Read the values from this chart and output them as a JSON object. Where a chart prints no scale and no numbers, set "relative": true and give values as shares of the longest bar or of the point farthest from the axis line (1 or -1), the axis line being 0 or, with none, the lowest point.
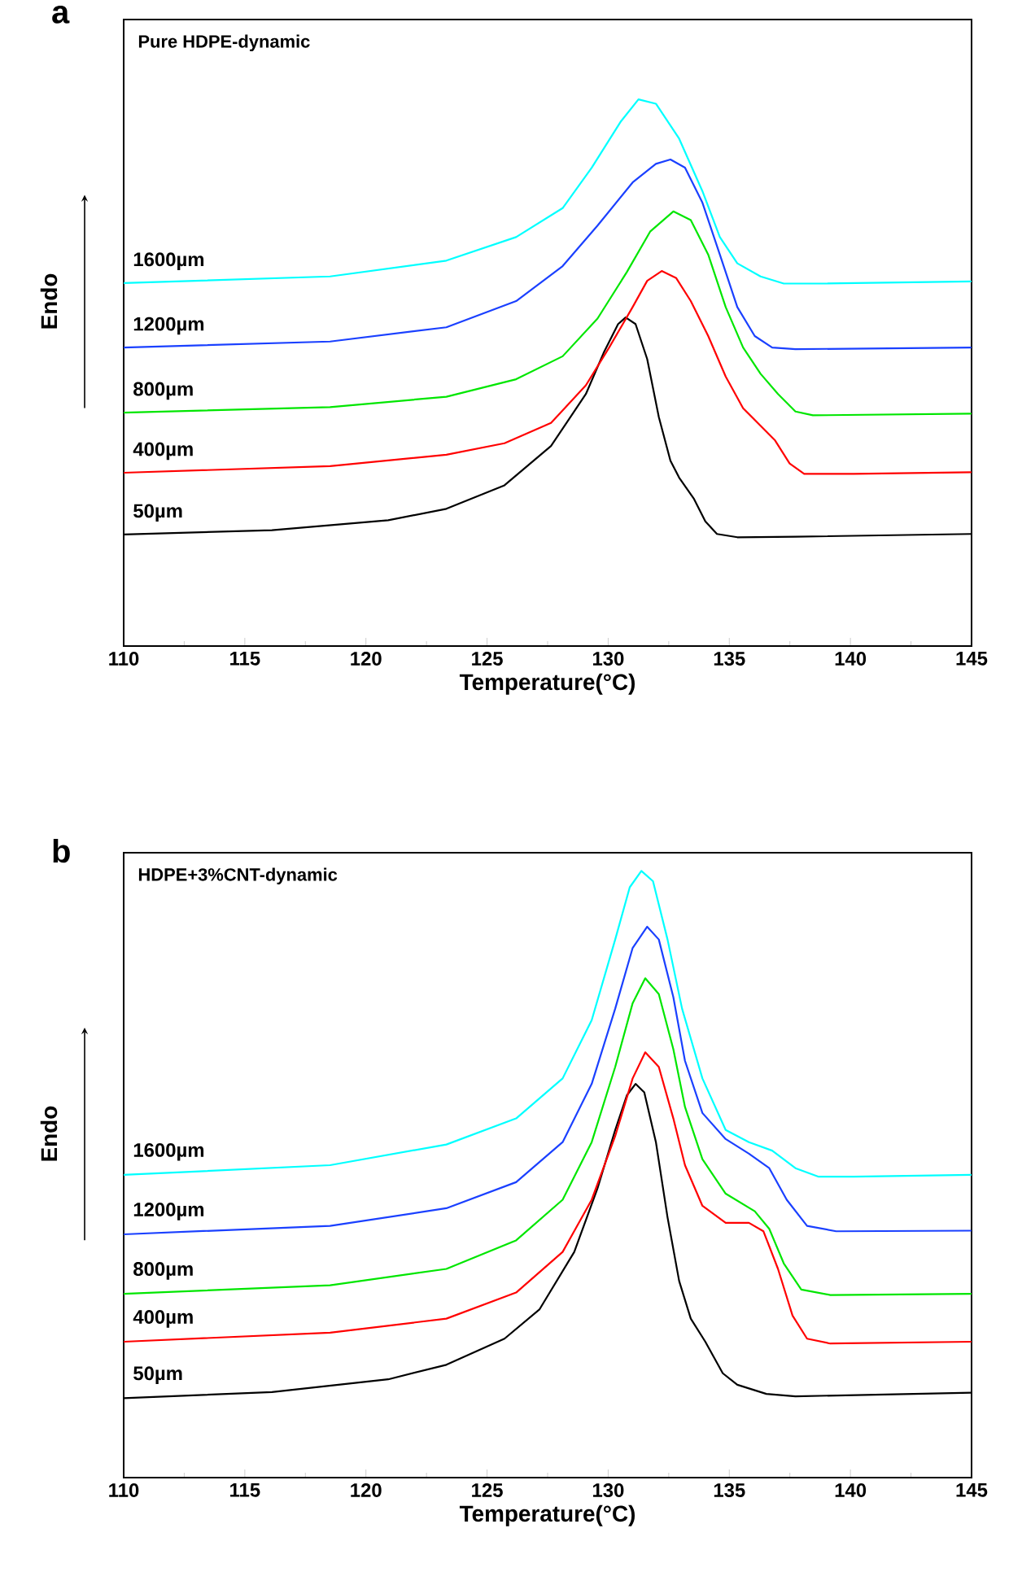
{
  "chart_data": [
    {
      "type": "line",
      "title": "a",
      "subtitle": "Pure HDPE-dynamic",
      "xlabel": "Temperature(°C)",
      "ylabel": "Endo",
      "relative": true,
      "xlim": [
        110,
        145
      ],
      "xticks": [
        110,
        115,
        120,
        125,
        130,
        135,
        140,
        145
      ],
      "series": [
        {
          "name": "50µm",
          "color": "#000000",
          "x": [
            110.0,
            116.12,
            120.92,
            123.32,
            125.72,
            127.64,
            129.08,
            129.81,
            130.41,
            130.72,
            131.13,
            131.61,
            132.09,
            132.57,
            132.93,
            133.53,
            134.01,
            134.49,
            135.33,
            137.73,
            145.0
          ],
          "values": [
            0.204,
            0.212,
            0.23,
            0.251,
            0.294,
            0.366,
            0.461,
            0.536,
            0.589,
            0.601,
            0.589,
            0.525,
            0.419,
            0.339,
            0.308,
            0.27,
            0.228,
            0.205,
            0.199,
            0.2,
            0.205
          ]
        },
        {
          "name": "400µm",
          "color": "#ff0000",
          "x": [
            110.0,
            118.52,
            123.32,
            125.72,
            127.64,
            129.08,
            130.04,
            131.01,
            131.61,
            132.21,
            132.81,
            133.41,
            134.13,
            134.85,
            135.57,
            136.29,
            136.89,
            137.49,
            138.09,
            140.13,
            145.0
          ],
          "values": [
            0.317,
            0.329,
            0.35,
            0.371,
            0.408,
            0.477,
            0.546,
            0.62,
            0.668,
            0.686,
            0.673,
            0.631,
            0.567,
            0.493,
            0.435,
            0.403,
            0.376,
            0.334,
            0.315,
            0.315,
            0.318
          ]
        },
        {
          "name": "800µm",
          "color": "#00e600",
          "x": [
            110.0,
            118.52,
            123.32,
            126.2,
            128.12,
            129.56,
            130.77,
            131.73,
            132.69,
            133.41,
            134.13,
            134.85,
            135.57,
            136.29,
            137.01,
            137.73,
            138.45,
            145.0
          ],
          "values": [
            0.427,
            0.437,
            0.456,
            0.488,
            0.53,
            0.599,
            0.684,
            0.758,
            0.795,
            0.779,
            0.716,
            0.62,
            0.546,
            0.498,
            0.461,
            0.429,
            0.422,
            0.425
          ]
        },
        {
          "name": "1200µm",
          "color": "#1a40ff",
          "x": [
            110.0,
            118.52,
            123.32,
            126.2,
            128.12,
            129.56,
            131.01,
            131.97,
            132.57,
            133.17,
            133.89,
            134.61,
            135.33,
            136.05,
            136.77,
            137.73,
            145.0
          ],
          "values": [
            0.546,
            0.557,
            0.583,
            0.631,
            0.695,
            0.769,
            0.848,
            0.882,
            0.89,
            0.875,
            0.811,
            0.716,
            0.62,
            0.567,
            0.546,
            0.543,
            0.546
          ]
        },
        {
          "name": "1600µm",
          "color": "#00ffff",
          "x": [
            110.0,
            118.52,
            123.32,
            126.2,
            128.12,
            129.32,
            130.53,
            131.25,
            131.97,
            132.93,
            133.89,
            134.61,
            135.33,
            136.29,
            137.25,
            138.93,
            145.0
          ],
          "values": [
            0.664,
            0.676,
            0.705,
            0.748,
            0.801,
            0.875,
            0.96,
            1.0,
            0.992,
            0.928,
            0.832,
            0.748,
            0.7,
            0.676,
            0.663,
            0.663,
            0.667
          ]
        }
      ]
    },
    {
      "type": "line",
      "title": "b",
      "subtitle": "HDPE+3%CNT-dynamic",
      "xlabel": "Temperature(°C)",
      "ylabel": "Endo",
      "relative": true,
      "xlim": [
        110,
        145
      ],
      "xticks": [
        110,
        115,
        120,
        125,
        130,
        135,
        140,
        145
      ],
      "series": [
        {
          "name": "50µm",
          "color": "#000000",
          "x": [
            110.0,
            116.12,
            120.92,
            123.32,
            125.72,
            127.16,
            128.6,
            129.56,
            130.29,
            130.77,
            131.13,
            131.49,
            131.97,
            132.45,
            132.93,
            133.41,
            134.01,
            134.73,
            135.33,
            136.53,
            137.73,
            145.0
          ],
          "values": [
            0.131,
            0.141,
            0.162,
            0.186,
            0.229,
            0.277,
            0.372,
            0.477,
            0.573,
            0.63,
            0.649,
            0.635,
            0.553,
            0.429,
            0.324,
            0.262,
            0.224,
            0.172,
            0.153,
            0.138,
            0.134,
            0.14
          ]
        },
        {
          "name": "400µm",
          "color": "#ff0000",
          "x": [
            110.0,
            118.52,
            123.32,
            126.2,
            128.12,
            129.32,
            130.29,
            131.01,
            131.53,
            132.09,
            132.69,
            133.17,
            133.89,
            134.85,
            135.81,
            136.41,
            137.01,
            137.61,
            138.21,
            139.17,
            145.0
          ],
          "values": [
            0.224,
            0.239,
            0.262,
            0.305,
            0.372,
            0.458,
            0.563,
            0.658,
            0.701,
            0.677,
            0.592,
            0.515,
            0.448,
            0.42,
            0.42,
            0.406,
            0.344,
            0.267,
            0.229,
            0.221,
            0.224
          ]
        },
        {
          "name": "800µm",
          "color": "#00e600",
          "x": [
            110.0,
            118.52,
            123.32,
            126.2,
            128.12,
            129.32,
            130.29,
            131.01,
            131.53,
            132.09,
            132.69,
            133.17,
            133.89,
            134.85,
            136.05,
            136.65,
            137.25,
            137.97,
            139.17,
            145.0
          ],
          "values": [
            0.303,
            0.317,
            0.344,
            0.391,
            0.458,
            0.553,
            0.677,
            0.782,
            0.823,
            0.797,
            0.706,
            0.611,
            0.525,
            0.468,
            0.439,
            0.41,
            0.353,
            0.31,
            0.301,
            0.303
          ]
        },
        {
          "name": "1200µm",
          "color": "#1a40ff",
          "x": [
            110.0,
            118.52,
            123.32,
            126.2,
            128.12,
            129.32,
            130.29,
            131.01,
            131.61,
            132.09,
            132.69,
            133.17,
            133.89,
            134.85,
            135.81,
            136.65,
            137.37,
            138.21,
            139.41,
            145.0
          ],
          "values": [
            0.401,
            0.415,
            0.444,
            0.487,
            0.553,
            0.649,
            0.773,
            0.873,
            0.908,
            0.887,
            0.792,
            0.687,
            0.601,
            0.558,
            0.534,
            0.51,
            0.458,
            0.415,
            0.406,
            0.407
          ]
        },
        {
          "name": "1600µm",
          "color": "#00ffff",
          "x": [
            110.0,
            118.52,
            123.32,
            126.2,
            128.12,
            129.32,
            130.29,
            130.89,
            131.37,
            131.85,
            132.45,
            133.05,
            133.89,
            134.85,
            135.81,
            136.77,
            137.73,
            138.69,
            140.13,
            145.0
          ],
          "values": [
            0.499,
            0.515,
            0.549,
            0.592,
            0.658,
            0.754,
            0.887,
            0.973,
            1.0,
            0.983,
            0.887,
            0.773,
            0.658,
            0.573,
            0.553,
            0.539,
            0.51,
            0.496,
            0.496,
            0.499
          ]
        }
      ]
    }
  ]
}
